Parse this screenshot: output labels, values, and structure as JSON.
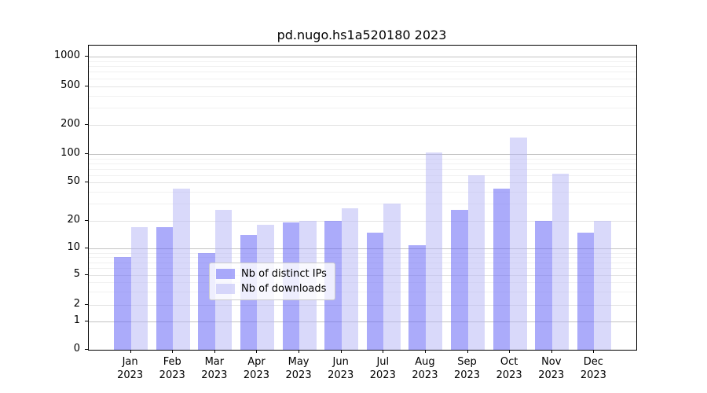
{
  "title": "pd.nugo.hs1a520180 2023",
  "chart_data": {
    "type": "bar",
    "title": "pd.nugo.hs1a520180 2023",
    "categories": [
      "Jan 2023",
      "Feb 2023",
      "Mar 2023",
      "Apr 2023",
      "May 2023",
      "Jun 2023",
      "Jul 2023",
      "Aug 2023",
      "Sep 2023",
      "Oct 2023",
      "Nov 2023",
      "Dec 2023"
    ],
    "series": [
      {
        "name": "Nb of distinct IPs",
        "values": [
          8,
          17,
          9,
          14,
          19,
          20,
          15,
          11,
          26,
          43,
          20,
          15
        ],
        "color": "#6666f5",
        "alpha": 0.55
      },
      {
        "name": "Nb of downloads",
        "values": [
          17,
          43,
          26,
          18,
          20,
          27,
          30,
          105,
          60,
          150,
          62,
          20
        ],
        "color": "#b4b4f5",
        "alpha": 0.5
      }
    ],
    "xlabel": "",
    "ylabel": "",
    "yscale": "symlog",
    "ylim": [
      0,
      1000
    ],
    "yticks": [
      0,
      1,
      2,
      5,
      10,
      20,
      50,
      100,
      200,
      500,
      1000
    ],
    "grid": true,
    "legend_position": "lower center"
  },
  "x_axis": {
    "months": [
      {
        "month": "Jan",
        "year": "2023"
      },
      {
        "month": "Feb",
        "year": "2023"
      },
      {
        "month": "Mar",
        "year": "2023"
      },
      {
        "month": "Apr",
        "year": "2023"
      },
      {
        "month": "May",
        "year": "2023"
      },
      {
        "month": "Jun",
        "year": "2023"
      },
      {
        "month": "Jul",
        "year": "2023"
      },
      {
        "month": "Aug",
        "year": "2023"
      },
      {
        "month": "Sep",
        "year": "2023"
      },
      {
        "month": "Oct",
        "year": "2023"
      },
      {
        "month": "Nov",
        "year": "2023"
      },
      {
        "month": "Dec",
        "year": "2023"
      }
    ]
  },
  "y_axis": {
    "tick_labels": [
      "0",
      "1",
      "2",
      "5",
      "10",
      "20",
      "50",
      "100",
      "200",
      "500",
      "1000"
    ]
  },
  "legend": {
    "items": [
      {
        "label": "Nb of distinct IPs"
      },
      {
        "label": "Nb of downloads"
      }
    ]
  },
  "colors": {
    "bar_distinct_ips": "#a7a7fa",
    "bar_downloads": "#dbdbfa",
    "grid_major": "#c3c3c3",
    "grid_minor": "#f1f1f1",
    "axis": "#000000"
  }
}
